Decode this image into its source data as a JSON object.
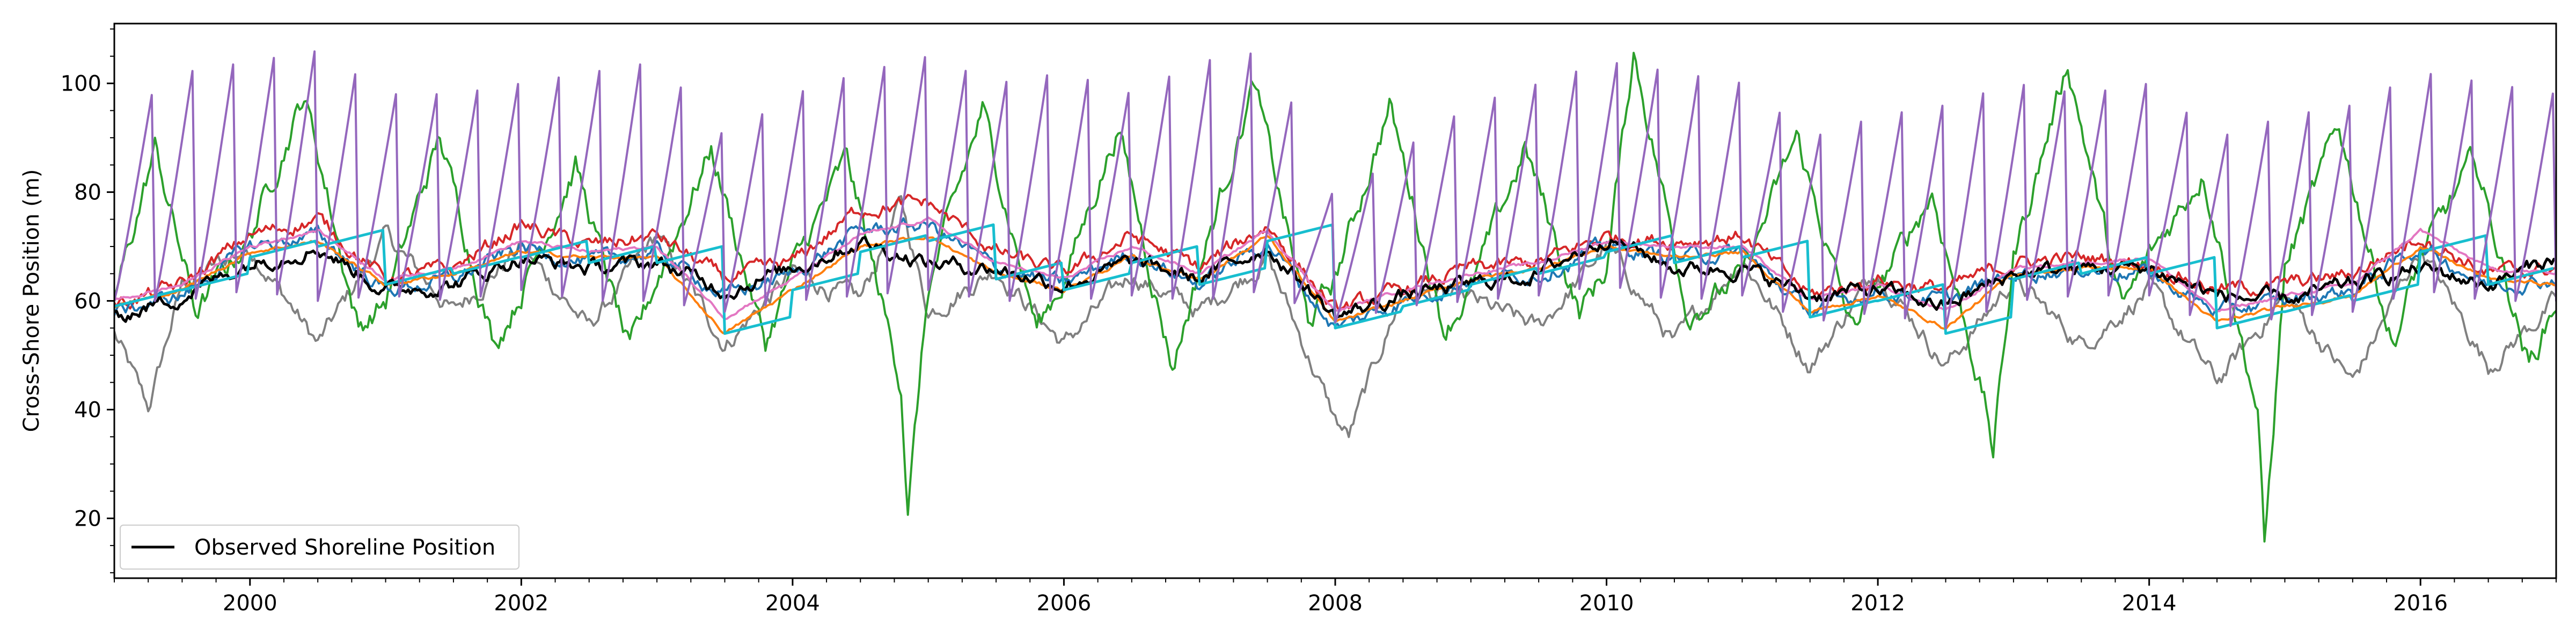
{
  "chart_data": {
    "type": "line",
    "title": "",
    "xlabel": "",
    "ylabel": "Cross-Shore Position (m)",
    "xlim": [
      1999.0,
      2017.0
    ],
    "ylim": [
      9.0,
      111.0
    ],
    "x_ticks": [
      2000,
      2002,
      2004,
      2006,
      2008,
      2010,
      2012,
      2014,
      2016
    ],
    "y_ticks": [
      20,
      40,
      60,
      80,
      100
    ],
    "grid": false,
    "legend": {
      "position": "lower-left",
      "entries": [
        "Observed Shoreline Position"
      ]
    },
    "series": [
      {
        "name": "Observed Shoreline Position",
        "color": "#000000",
        "style": "noisy",
        "x": [
          1999.0,
          1999.5,
          2000.0,
          2000.5,
          2001.0,
          2001.5,
          2002.0,
          2002.5,
          2003.0,
          2003.5,
          2004.0,
          2004.5,
          2005.0,
          2005.5,
          2006.0,
          2006.5,
          2007.0,
          2007.5,
          2008.0,
          2008.5,
          2009.0,
          2009.5,
          2010.0,
          2010.5,
          2011.0,
          2011.5,
          2012.0,
          2012.5,
          2013.0,
          2013.5,
          2014.0,
          2014.5,
          2015.0,
          2015.5,
          2016.0,
          2016.5,
          2017.0
        ],
        "y": [
          57,
          61,
          67,
          70,
          62,
          63,
          68,
          66,
          67,
          62,
          66,
          71,
          67,
          66,
          63,
          67,
          64,
          70,
          57,
          61,
          63,
          65,
          72,
          66,
          66,
          61,
          62,
          59,
          65,
          66,
          66,
          61,
          60,
          63,
          66,
          63,
          68
        ]
      },
      {
        "color": "#808080",
        "style": "noisy",
        "x": [
          1999.0,
          1999.25,
          1999.5,
          2000.0,
          2000.5,
          2001.0,
          2001.5,
          2002.0,
          2002.5,
          2003.0,
          2003.5,
          2004.0,
          2004.5,
          2004.8,
          2005.0,
          2005.5,
          2006.0,
          2006.5,
          2007.0,
          2007.5,
          2008.0,
          2008.1,
          2008.5,
          2009.0,
          2009.5,
          2010.0,
          2010.5,
          2011.0,
          2011.5,
          2012.0,
          2012.5,
          2013.0,
          2013.5,
          2014.0,
          2014.5,
          2015.0,
          2015.5,
          2016.0,
          2016.5,
          2017.0
        ],
        "y": [
          54,
          40,
          63,
          70,
          52,
          72,
          58,
          70,
          55,
          72,
          52,
          65,
          60,
          78,
          58,
          66,
          52,
          65,
          58,
          68,
          38,
          35,
          62,
          60,
          55,
          70,
          52,
          68,
          48,
          66,
          48,
          64,
          52,
          62,
          45,
          61,
          45,
          70,
          48,
          60
        ]
      },
      {
        "color": "#2ca02c",
        "style": "noisy",
        "x": [
          1999.0,
          1999.3,
          1999.6,
          2000.0,
          2000.4,
          2000.8,
          2001.0,
          2001.4,
          2001.8,
          2002.0,
          2002.4,
          2002.8,
          2003.0,
          2003.4,
          2003.8,
          2004.0,
          2004.4,
          2004.8,
          2004.85,
          2005.0,
          2005.4,
          2005.8,
          2006.0,
          2006.4,
          2006.8,
          2007.0,
          2007.4,
          2007.8,
          2008.0,
          2008.4,
          2008.8,
          2009.0,
          2009.4,
          2009.8,
          2010.0,
          2010.2,
          2010.6,
          2011.0,
          2011.4,
          2011.8,
          2012.0,
          2012.4,
          2012.8,
          2012.85,
          2013.0,
          2013.4,
          2013.8,
          2014.0,
          2014.4,
          2014.8,
          2014.85,
          2015.0,
          2015.4,
          2015.8,
          2016.0,
          2016.4,
          2016.8,
          2017.0
        ],
        "y": [
          60,
          88,
          58,
          72,
          98,
          55,
          60,
          90,
          52,
          62,
          85,
          50,
          64,
          88,
          52,
          66,
          86,
          45,
          22,
          62,
          95,
          55,
          64,
          92,
          48,
          66,
          100,
          56,
          64,
          96,
          55,
          62,
          88,
          58,
          66,
          106,
          58,
          64,
          90,
          55,
          62,
          80,
          40,
          32,
          68,
          104,
          58,
          68,
          84,
          40,
          14,
          66,
          92,
          52,
          68,
          86,
          48,
          60
        ]
      },
      {
        "color": "#d62728",
        "style": "noisy",
        "x": [
          1999.0,
          1999.5,
          2000.0,
          2000.5,
          2001.0,
          2001.5,
          2002.0,
          2002.5,
          2003.0,
          2003.5,
          2004.0,
          2004.5,
          2005.0,
          2005.5,
          2006.0,
          2006.5,
          2007.0,
          2007.5,
          2008.0,
          2008.5,
          2009.0,
          2009.5,
          2010.0,
          2010.5,
          2011.0,
          2011.5,
          2012.0,
          2012.5,
          2013.0,
          2013.5,
          2014.0,
          2014.5,
          2015.0,
          2015.5,
          2016.0,
          2016.5,
          2017.0
        ],
        "y": [
          59,
          63,
          72,
          75,
          64,
          66,
          74,
          70,
          72,
          64,
          67,
          77,
          78,
          69,
          65,
          72,
          66,
          74,
          58,
          62,
          66,
          67,
          72,
          71,
          72,
          61,
          64,
          62,
          67,
          68,
          67,
          62,
          63,
          65,
          72,
          65,
          66
        ]
      },
      {
        "color": "#1f77b4",
        "style": "noisy",
        "x": [
          1999.0,
          1999.5,
          2000.0,
          2000.5,
          2001.0,
          2001.5,
          2002.0,
          2002.5,
          2003.0,
          2003.5,
          2004.0,
          2004.5,
          2005.0,
          2005.5,
          2006.0,
          2006.5,
          2007.0,
          2007.5,
          2008.0,
          2008.5,
          2009.0,
          2009.5,
          2010.0,
          2010.5,
          2011.0,
          2011.5,
          2012.0,
          2012.5,
          2013.0,
          2013.5,
          2014.0,
          2014.5,
          2015.0,
          2015.5,
          2016.0,
          2016.5,
          2017.0
        ],
        "y": [
          58,
          61,
          70,
          72,
          62,
          64,
          70,
          67,
          69,
          61,
          65,
          73,
          74,
          66,
          63,
          69,
          63,
          71,
          55,
          60,
          64,
          65,
          70,
          68,
          69,
          58,
          62,
          60,
          65,
          66,
          65,
          58,
          60,
          62,
          70,
          63,
          64
        ]
      },
      {
        "color": "#ff7f0e",
        "style": "smooth",
        "x": [
          1999.0,
          1999.5,
          2000.0,
          2000.5,
          2001.0,
          2001.5,
          2002.0,
          2002.5,
          2003.0,
          2003.5,
          2004.0,
          2004.5,
          2005.0,
          2005.5,
          2006.0,
          2006.5,
          2007.0,
          2007.5,
          2008.0,
          2008.5,
          2009.0,
          2009.5,
          2010.0,
          2010.5,
          2011.0,
          2011.5,
          2012.0,
          2012.5,
          2013.0,
          2013.5,
          2014.0,
          2014.5,
          2015.0,
          2015.5,
          2016.0,
          2016.5,
          2017.0
        ],
        "y": [
          59,
          62,
          69,
          71,
          63,
          65,
          69,
          68,
          68,
          54,
          62,
          70,
          72,
          65,
          62,
          68,
          64,
          72,
          56,
          60,
          64,
          66,
          70,
          68,
          69,
          58,
          61,
          55,
          65,
          66,
          66,
          56,
          59,
          61,
          70,
          64,
          63
        ]
      },
      {
        "color": "#e377c2",
        "style": "smooth",
        "x": [
          1999.0,
          1999.5,
          2000.0,
          2000.5,
          2001.0,
          2001.5,
          2002.0,
          2002.5,
          2003.0,
          2003.5,
          2004.0,
          2004.5,
          2005.0,
          2005.5,
          2006.0,
          2006.5,
          2007.0,
          2007.5,
          2008.0,
          2008.5,
          2009.0,
          2009.5,
          2010.0,
          2010.5,
          2011.0,
          2011.5,
          2012.0,
          2012.5,
          2013.0,
          2013.5,
          2014.0,
          2014.5,
          2015.0,
          2015.5,
          2016.0,
          2016.5,
          2017.0
        ],
        "y": [
          60,
          63,
          70,
          73,
          64,
          66,
          71,
          69,
          70,
          57,
          64,
          72,
          75,
          67,
          64,
          70,
          65,
          73,
          58,
          62,
          65,
          67,
          71,
          70,
          70,
          60,
          63,
          58,
          66,
          67,
          68,
          58,
          61,
          63,
          73,
          66,
          65
        ]
      },
      {
        "color": "#17becf",
        "style": "sawtooth",
        "period_years": 0.5,
        "rise_per_cycle": 3,
        "reset_points": [
          1999.0,
          1999.5,
          2000.0,
          2000.5,
          2001.0,
          2001.5,
          2002.0,
          2002.5,
          2003.0,
          2003.5,
          2004.0,
          2004.5,
          2005.0,
          2005.5,
          2006.0,
          2006.5,
          2007.0,
          2007.5,
          2008.0,
          2008.5,
          2009.0,
          2009.5,
          2010.0,
          2010.5,
          2011.0,
          2011.5,
          2012.0,
          2012.5,
          2013.0,
          2013.5,
          2014.0,
          2014.5,
          2015.0,
          2015.5,
          2016.0,
          2016.5,
          2017.0
        ],
        "y": [
          59,
          62,
          68,
          70,
          63,
          65,
          68,
          67,
          67,
          54,
          62,
          69,
          71,
          64,
          62,
          67,
          63,
          71,
          55,
          59,
          63,
          65,
          69,
          67,
          68,
          57,
          60,
          54,
          64,
          65,
          65,
          55,
          58,
          60,
          69,
          63,
          62
        ]
      },
      {
        "color": "#9467bd",
        "style": "sawtooth",
        "period_years": 0.3,
        "baseline": [
          60,
          60,
          62,
          60,
          61,
          60,
          62,
          60,
          60,
          58,
          60,
          61,
          62,
          60,
          60,
          61,
          60,
          62,
          56,
          59,
          60,
          61,
          63,
          60,
          61,
          56,
          58,
          55,
          60,
          61,
          61,
          55,
          57,
          58,
          62,
          60,
          60
        ],
        "peaks": [
          93,
          102,
          104,
          106,
          98,
          98,
          100,
          102,
          104,
          90,
          98,
          102,
          105,
          100,
          102,
          98,
          104,
          106,
          78,
          88,
          96,
          100,
          104,
          102,
          100,
          90,
          94,
          96,
          100,
          98,
          100,
          90,
          94,
          96,
          102,
          100,
          98
        ]
      }
    ]
  }
}
